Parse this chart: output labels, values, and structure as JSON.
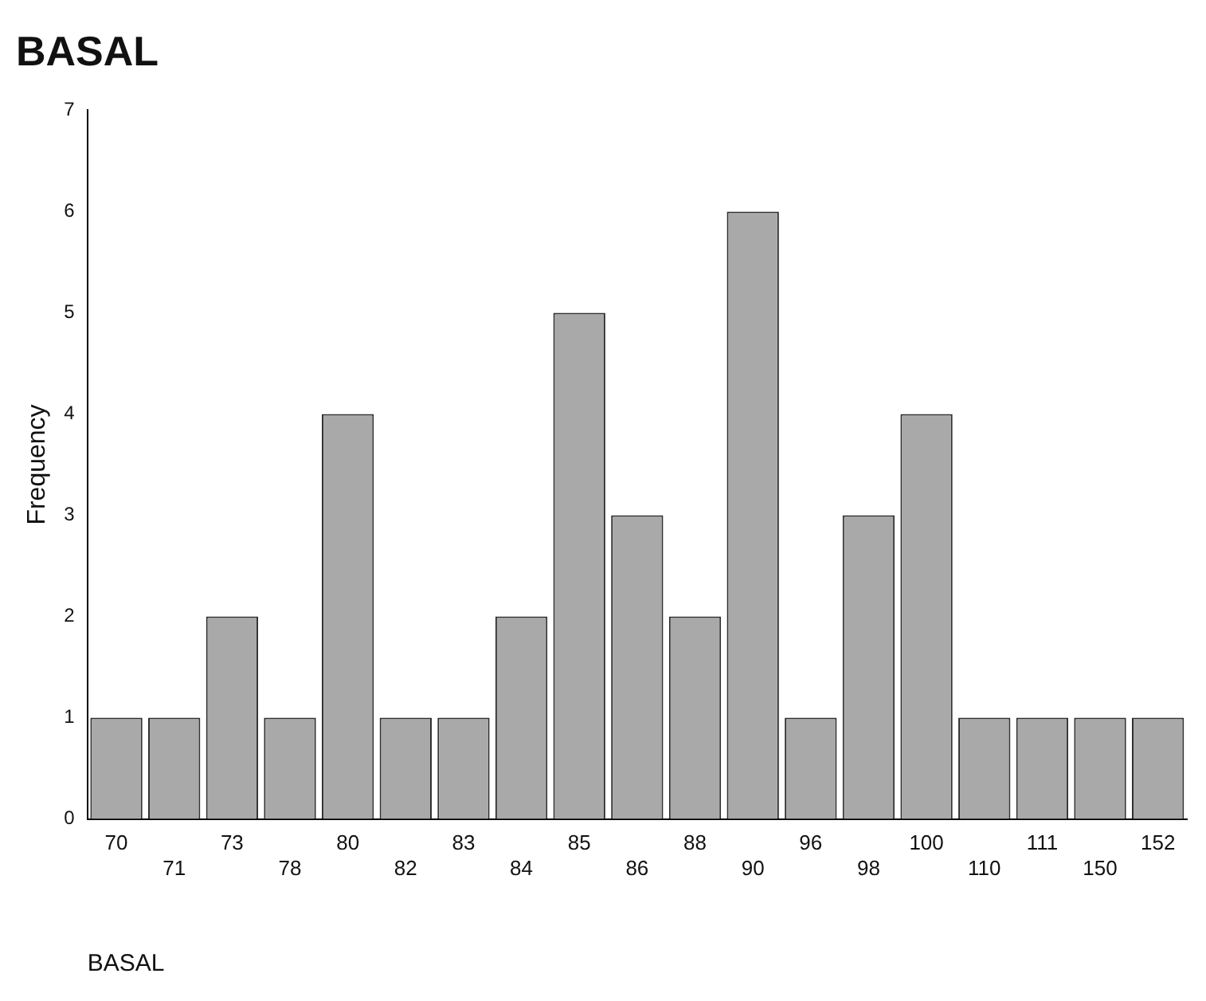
{
  "chart_data": {
    "type": "bar",
    "title": "BASAL",
    "xlabel": "BASAL",
    "ylabel": "Frequency",
    "categories": [
      "70",
      "71",
      "73",
      "78",
      "80",
      "82",
      "83",
      "84",
      "85",
      "86",
      "88",
      "90",
      "96",
      "98",
      "100",
      "110",
      "111",
      "150",
      "152"
    ],
    "values": [
      1,
      1,
      2,
      1,
      4,
      1,
      1,
      2,
      5,
      3,
      2,
      6,
      1,
      3,
      4,
      1,
      1,
      1,
      1
    ],
    "color": "#a9a9a9",
    "ylim": [
      0,
      7
    ],
    "yticks": [
      0,
      1,
      2,
      3,
      4,
      5,
      6,
      7
    ],
    "grid": false,
    "legend": false
  }
}
